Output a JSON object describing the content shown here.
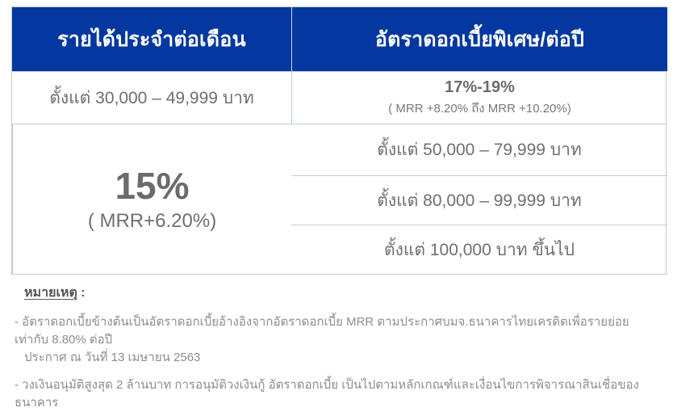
{
  "table": {
    "columns": {
      "income_header": "รายได้ประจำต่อเดือน",
      "rate_header": "อัตราดอกเบี้ยพิเศษ/ต่อปี"
    },
    "income_tiers": [
      "ตั้งแต่ 30,000 – 49,999 บาท",
      "ตั้งแต่ 50,000 – 79,999 บาท",
      "ตั้งแต่ 80,000 – 99,999 บาท",
      "ตั้งแต่ 100,000 บาท ขึ้นไป"
    ],
    "rates": {
      "tier1": {
        "value": "17%-19%",
        "detail": "( MRR +8.20% ถึง MRR +10.20%)"
      },
      "tiers2to4": {
        "value": "15%",
        "detail": "( MRR+6.20%)"
      }
    }
  },
  "notes": {
    "heading": "หมายเหตุ",
    "heading_colon": " :",
    "note1_line1": "- อัตราดอกเบี้ยข้างต้นเป็นอัตราดอกเบี้ยอ้างอิงจากอัตราดอกเบี้ย MRR ตามประกาศบมจ.ธนาคารไทยเครดิตเพื่อรายย่อยเท่ากับ 8.80% ต่อปี",
    "note1_line2": "ประกาศ ณ วันที่ 13 เมษายน 2563",
    "note2": "- วงเงินอนุมัติสูงสุด 2 ล้านบาท การอนุมัติวงเงินกู้ อัตราดอกเบี้ย เป็นไปตามหลักเกณฑ์และเงื่อนไขการพิจารณาสินเชื่อของธนาคาร"
  },
  "colors": {
    "header_bg": "#0438a0",
    "header_text": "#ffffff",
    "border": "#bfcbdc",
    "cell_text": "#6e6f71",
    "note_text": "#8b8d90",
    "note_heading": "#55565a"
  }
}
